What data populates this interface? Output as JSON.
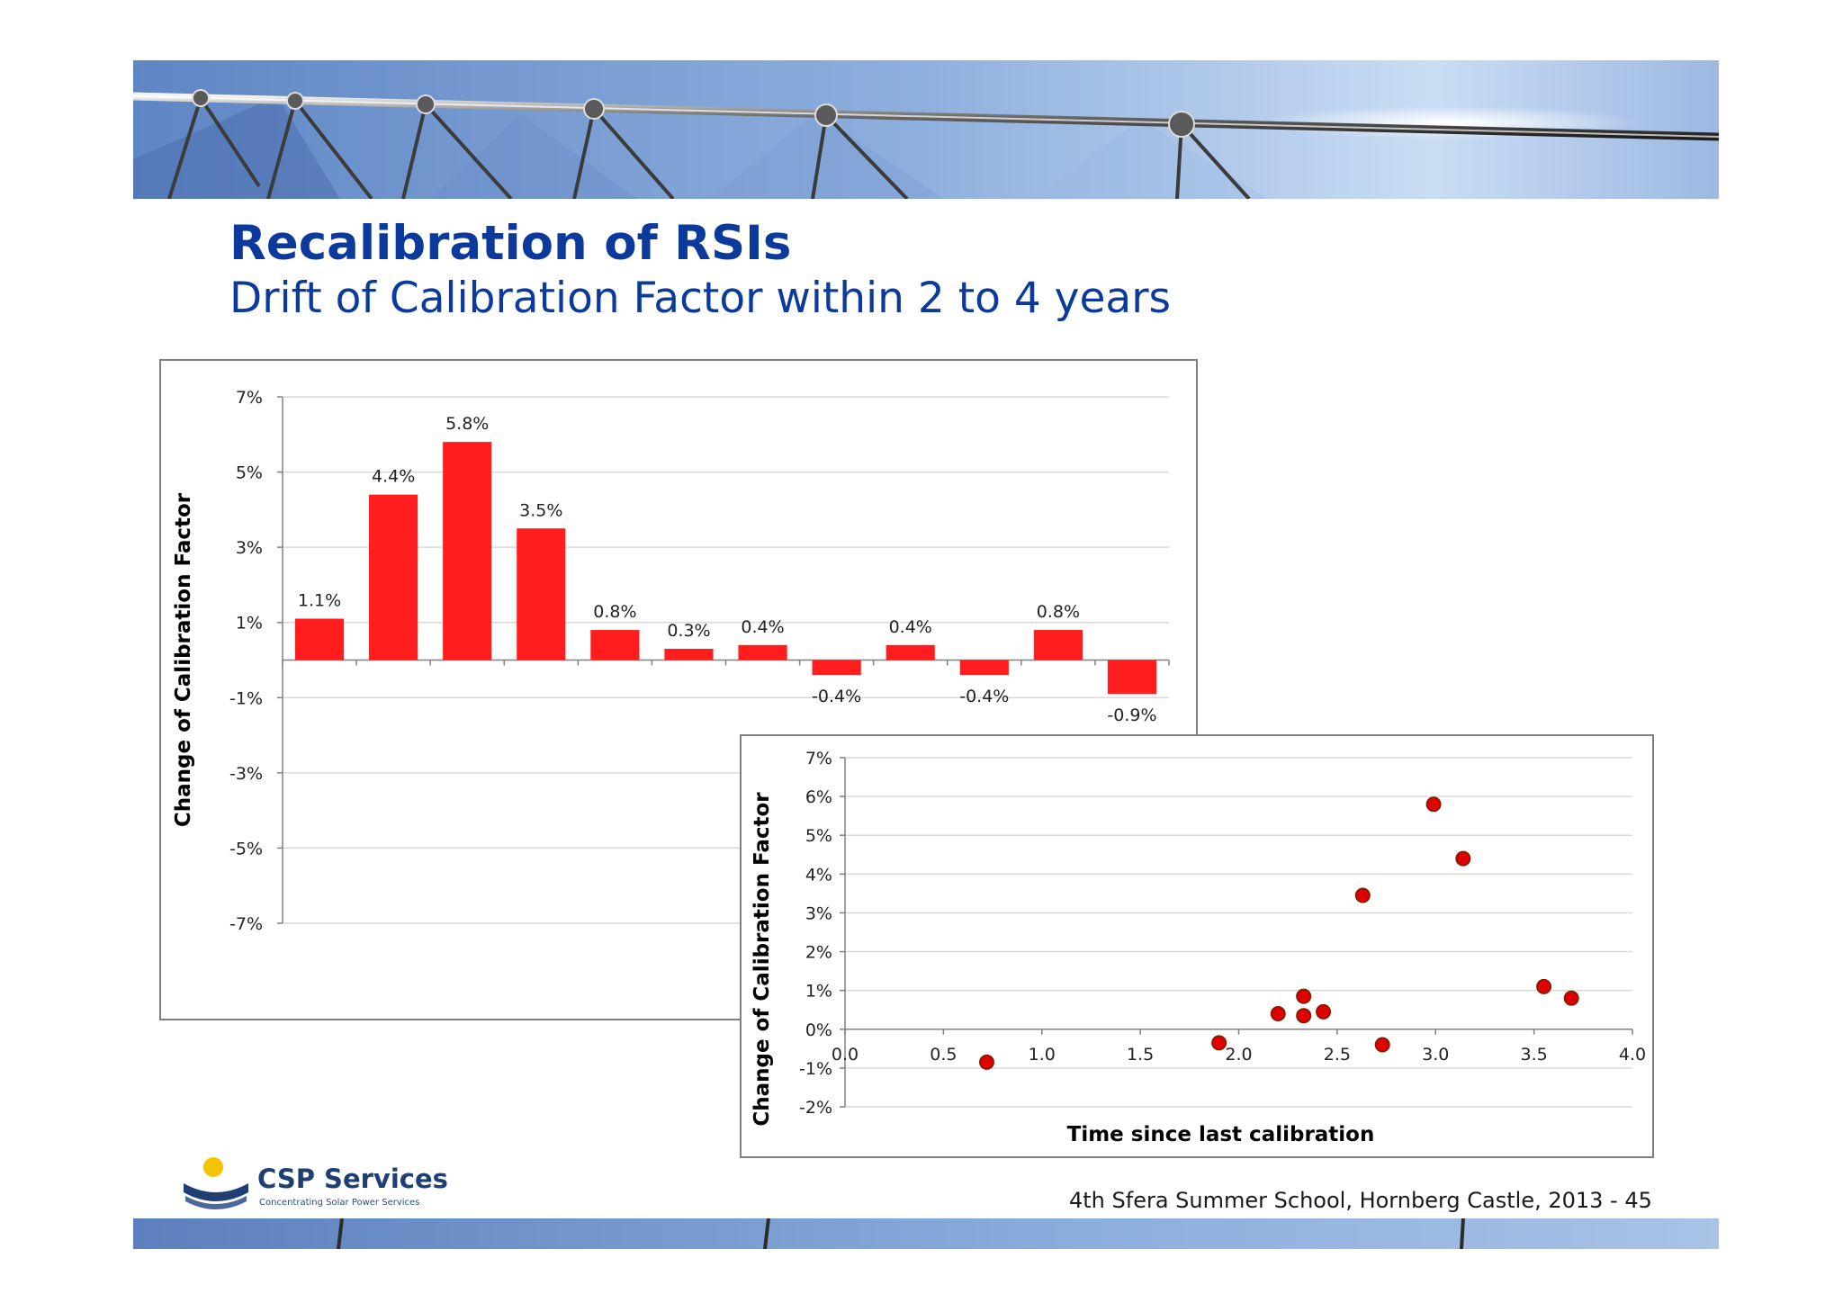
{
  "slide": {
    "title": "Recalibration of RSIs",
    "subtitle": "Drift of Calibration Factor within 2 to 4 years",
    "footer": "4th Sfera Summer School, Hornberg Castle, 2013   - 45",
    "page_number": 45
  },
  "logo": {
    "name": "CSP Services",
    "tagline": "Concentrating Solar Power Services",
    "icon": "sun-over-dish-icon"
  },
  "colors": {
    "title": "#0b3a9c",
    "bar": "#ff1d1d",
    "point": "#e00000",
    "point_edge": "#8a1a00",
    "banner_sky": "#7e9fd1"
  },
  "chart_data": [
    {
      "type": "bar",
      "ylabel": "Change of Calibration Factor",
      "ylim": [
        -7,
        7
      ],
      "yticks": [
        7,
        5,
        3,
        1,
        -1,
        -3,
        -5,
        -7
      ],
      "ytick_labels": [
        "7%",
        "5%",
        "3%",
        "1%",
        "-1%",
        "-3%",
        "-5%",
        "-7%"
      ],
      "categories": [
        "",
        "",
        "",
        "",
        "",
        "",
        "",
        "",
        "",
        "",
        "",
        ""
      ],
      "values": [
        1.1,
        4.4,
        5.8,
        3.5,
        0.8,
        0.3,
        0.4,
        -0.4,
        0.4,
        -0.4,
        0.8,
        -0.9
      ],
      "labels": [
        "1.1%",
        "4.4%",
        "5.8%",
        "3.5%",
        "0.8%",
        "0.3%",
        "0.4%",
        "-0.4%",
        "0.4%",
        "-0.4%",
        "0.8%",
        "-0.9%"
      ],
      "grid": true
    },
    {
      "type": "scatter",
      "xlabel": "Time since last calibration",
      "ylabel": "Change of Calibration Factor",
      "xlim": [
        0,
        4
      ],
      "ylim": [
        -2,
        7
      ],
      "xticks": [
        0,
        0.5,
        1,
        1.5,
        2,
        2.5,
        3,
        3.5,
        4
      ],
      "xtick_labels": [
        "0.0",
        "0.5",
        "1.0",
        "1.5",
        "2.0",
        "2.5",
        "3.0",
        "3.5",
        "4.0"
      ],
      "yticks": [
        7,
        6,
        5,
        4,
        3,
        2,
        1,
        0,
        -1,
        -2
      ],
      "ytick_labels": [
        "7%",
        "6%",
        "5%",
        "4%",
        "3%",
        "2%",
        "1%",
        "0%",
        "-1%",
        "-2%"
      ],
      "points": [
        {
          "x": 0.72,
          "y": -0.85
        },
        {
          "x": 1.9,
          "y": -0.35
        },
        {
          "x": 2.2,
          "y": 0.4
        },
        {
          "x": 2.33,
          "y": 0.85
        },
        {
          "x": 2.33,
          "y": 0.35
        },
        {
          "x": 2.43,
          "y": 0.45
        },
        {
          "x": 2.63,
          "y": 3.45
        },
        {
          "x": 2.73,
          "y": -0.4
        },
        {
          "x": 2.99,
          "y": 5.8
        },
        {
          "x": 3.14,
          "y": 4.4
        },
        {
          "x": 3.55,
          "y": 1.1
        },
        {
          "x": 3.69,
          "y": 0.8
        }
      ],
      "grid": true
    }
  ]
}
